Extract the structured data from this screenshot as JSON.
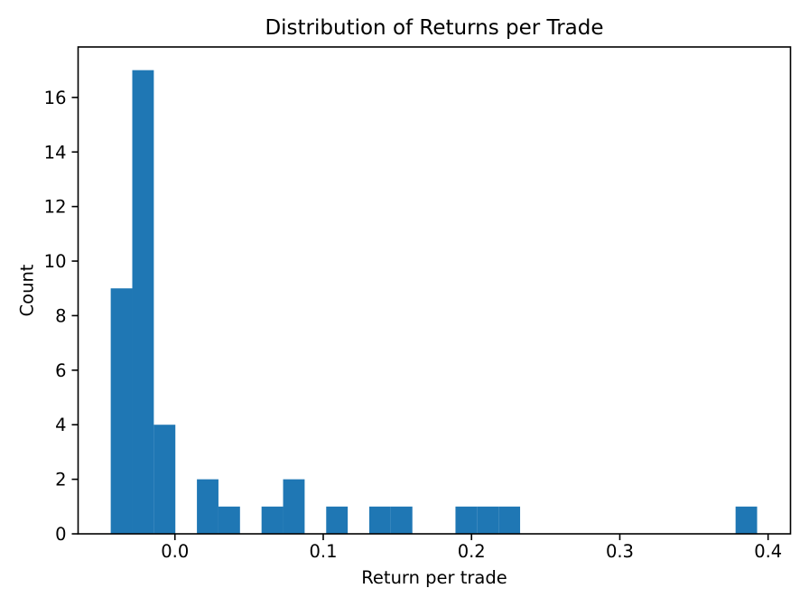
{
  "window": {
    "background_color": "#ffffff"
  },
  "chart_data": {
    "type": "bar",
    "subtype": "histogram",
    "title": "Distribution of Returns per Trade",
    "xlabel": "Return per trade",
    "ylabel": "Count",
    "bar_color": "#1f77b4",
    "axis_color": "#000000",
    "grid": false,
    "legend_position": "none",
    "bin_edges": [
      -0.0433,
      -0.02877,
      -0.01424,
      0.00029,
      0.01482,
      0.02935,
      0.04388,
      0.05841,
      0.07294,
      0.08747,
      0.102,
      0.11653,
      0.13106,
      0.14559,
      0.16012,
      0.17465,
      0.18918,
      0.20371,
      0.21824,
      0.23277,
      0.2473,
      0.26183,
      0.27636,
      0.29089,
      0.30542,
      0.31995,
      0.33448,
      0.34901,
      0.36354,
      0.37807,
      0.3926
    ],
    "counts": [
      9,
      17,
      4,
      0,
      2,
      1,
      0,
      1,
      2,
      0,
      1,
      0,
      1,
      1,
      0,
      0,
      1,
      1,
      1,
      0,
      0,
      0,
      0,
      0,
      0,
      0,
      0,
      0,
      0,
      1
    ],
    "xlim": [
      -0.0653,
      0.4151
    ],
    "ylim": [
      0,
      17.85
    ],
    "xticks": [
      0.0,
      0.1,
      0.2,
      0.3,
      0.4
    ],
    "xtick_labels": [
      "0.0",
      "0.1",
      "0.2",
      "0.3",
      "0.4"
    ],
    "yticks": [
      0,
      2,
      4,
      6,
      8,
      10,
      12,
      14,
      16
    ],
    "ytick_labels": [
      "0",
      "2",
      "4",
      "6",
      "8",
      "10",
      "12",
      "14",
      "16"
    ]
  }
}
